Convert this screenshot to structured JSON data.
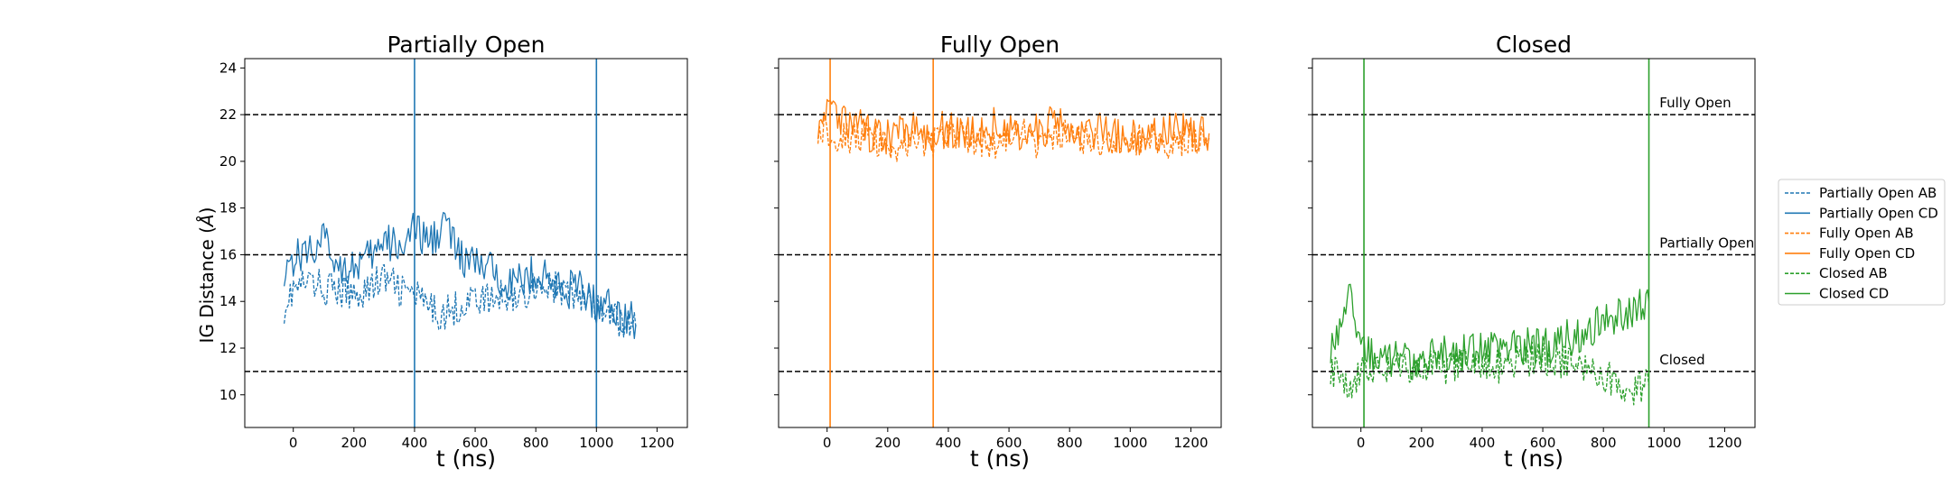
{
  "figure": {
    "ylabel": "IG Distance ($\\AA$)",
    "ylabel_main": "IG Distance (",
    "ylabel_unit": "Å",
    "ylabel_close": ")",
    "xlabel": "t (ns)",
    "x_ticks": [
      "0",
      "200",
      "400",
      "600",
      "800",
      "1000",
      "1200"
    ],
    "y_ticks": [
      "10",
      "12",
      "14",
      "16",
      "18",
      "20",
      "22",
      "24"
    ]
  },
  "chart_data": [
    {
      "type": "line",
      "title": "Partially Open",
      "xlabel": "t (ns)",
      "ylabel": "IG Distance (Å)",
      "xlim": [
        -160,
        1300
      ],
      "ylim": [
        8.6,
        24.4
      ],
      "color": "#1f77b4",
      "hlines": [
        22,
        16,
        11
      ],
      "vlines": [
        400,
        1000
      ],
      "hline_labels": [],
      "series": [
        {
          "name": "Partially Open AB",
          "style": "dashed",
          "x": [
            -30,
            0,
            50,
            100,
            150,
            200,
            250,
            300,
            350,
            400,
            450,
            500,
            550,
            600,
            650,
            700,
            750,
            800,
            850,
            900,
            950,
            1000,
            1050,
            1100,
            1130
          ],
          "y": [
            13.8,
            14.5,
            14.8,
            14.6,
            14.4,
            14.3,
            14.6,
            15.0,
            14.5,
            14.3,
            13.6,
            13.5,
            13.8,
            14.2,
            14.0,
            14.3,
            14.2,
            14.8,
            14.6,
            14.4,
            14.2,
            13.6,
            13.3,
            13.1,
            12.9
          ]
        },
        {
          "name": "Partially Open CD",
          "style": "solid",
          "x": [
            -30,
            0,
            50,
            100,
            150,
            200,
            250,
            300,
            350,
            400,
            450,
            500,
            550,
            600,
            650,
            700,
            750,
            800,
            850,
            900,
            950,
            1000,
            1050,
            1100,
            1130
          ],
          "y": [
            15.5,
            15.8,
            16.2,
            16.6,
            15.6,
            15.5,
            15.8,
            16.5,
            16.4,
            17.0,
            16.5,
            17.5,
            15.8,
            15.6,
            15.3,
            15.0,
            14.8,
            15.3,
            14.8,
            14.5,
            14.6,
            13.8,
            13.9,
            13.3,
            13.0
          ]
        }
      ]
    },
    {
      "type": "line",
      "title": "Fully Open",
      "xlabel": "t (ns)",
      "ylabel": "",
      "xlim": [
        -160,
        1300
      ],
      "ylim": [
        8.6,
        24.4
      ],
      "color": "#ff7f0e",
      "hlines": [
        22,
        16,
        11
      ],
      "vlines": [
        10,
        350
      ],
      "hline_labels": [],
      "series": [
        {
          "name": "Fully Open AB",
          "style": "dashed",
          "x": [
            -30,
            0,
            50,
            100,
            150,
            200,
            250,
            300,
            350,
            400,
            450,
            500,
            550,
            600,
            650,
            700,
            750,
            800,
            850,
            900,
            950,
            1000,
            1050,
            1100,
            1150,
            1200,
            1260
          ],
          "y": [
            21.5,
            21.3,
            21.0,
            21.1,
            20.9,
            20.6,
            20.7,
            20.9,
            20.8,
            21.0,
            21.2,
            20.9,
            20.7,
            21.0,
            21.1,
            20.8,
            20.9,
            21.1,
            20.9,
            20.7,
            20.8,
            20.9,
            21.0,
            20.8,
            20.9,
            21.0,
            21.0
          ]
        },
        {
          "name": "Fully Open CD",
          "style": "solid",
          "x": [
            -30,
            0,
            50,
            100,
            150,
            200,
            250,
            300,
            350,
            400,
            450,
            500,
            550,
            600,
            650,
            700,
            750,
            800,
            850,
            900,
            950,
            1000,
            1050,
            1100,
            1150,
            1200,
            1260
          ],
          "y": [
            21.8,
            22.0,
            21.6,
            21.4,
            21.2,
            21.0,
            21.3,
            21.5,
            21.2,
            21.4,
            21.1,
            21.3,
            21.5,
            21.2,
            21.0,
            21.4,
            21.6,
            21.2,
            21.0,
            21.3,
            21.1,
            21.0,
            21.2,
            21.1,
            21.3,
            21.2,
            21.2
          ]
        }
      ]
    },
    {
      "type": "line",
      "title": "Closed",
      "xlabel": "t (ns)",
      "ylabel": "",
      "xlim": [
        -160,
        1300
      ],
      "ylim": [
        8.6,
        24.4
      ],
      "color": "#2ca02c",
      "hlines": [
        22,
        16,
        11
      ],
      "vlines": [
        10,
        950
      ],
      "hline_labels": [
        "Fully Open",
        "Partially Open",
        "Closed"
      ],
      "series": [
        {
          "name": "Closed AB",
          "style": "dashed",
          "x": [
            -100,
            -60,
            -30,
            0,
            50,
            100,
            150,
            200,
            250,
            300,
            350,
            400,
            450,
            500,
            550,
            600,
            650,
            700,
            750,
            800,
            850,
            900,
            950
          ],
          "y": [
            11.2,
            10.6,
            10.3,
            11.3,
            11.0,
            11.2,
            11.1,
            11.3,
            11.2,
            11.1,
            11.3,
            11.4,
            11.2,
            11.4,
            11.5,
            11.6,
            11.5,
            11.3,
            11.0,
            10.8,
            10.5,
            10.3,
            10.4
          ]
        },
        {
          "name": "Closed CD",
          "style": "solid",
          "x": [
            -100,
            -60,
            -30,
            -10,
            20,
            50,
            100,
            150,
            200,
            250,
            300,
            350,
            400,
            450,
            500,
            550,
            600,
            650,
            700,
            750,
            800,
            850,
            900,
            930,
            950
          ],
          "y": [
            12.2,
            13.2,
            14.2,
            12.8,
            12.0,
            11.6,
            11.5,
            11.4,
            11.6,
            11.8,
            11.7,
            11.9,
            11.8,
            12.0,
            11.9,
            12.1,
            12.0,
            12.2,
            12.5,
            12.8,
            13.2,
            13.4,
            13.6,
            14.0,
            14.0
          ]
        }
      ]
    }
  ]
}
